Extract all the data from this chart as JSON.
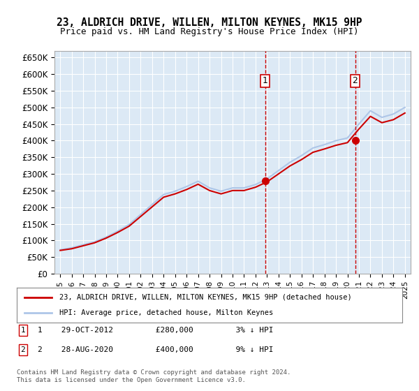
{
  "title": "23, ALDRICH DRIVE, WILLEN, MILTON KEYNES, MK15 9HP",
  "subtitle": "Price paid vs. HM Land Registry's House Price Index (HPI)",
  "xlabel": "",
  "ylabel": "",
  "ylim": [
    0,
    670000
  ],
  "yticks": [
    0,
    50000,
    100000,
    150000,
    200000,
    250000,
    300000,
    350000,
    400000,
    450000,
    500000,
    550000,
    600000,
    650000
  ],
  "ytick_labels": [
    "£0",
    "£50K",
    "£100K",
    "£150K",
    "£200K",
    "£250K",
    "£300K",
    "£350K",
    "£400K",
    "£450K",
    "£500K",
    "£550K",
    "£600K",
    "£650K"
  ],
  "xlim_start": 1994.5,
  "xlim_end": 2025.5,
  "sale1_year": 2012.83,
  "sale1_price": 280000,
  "sale1_label": "1",
  "sale2_year": 2020.67,
  "sale2_price": 400000,
  "sale2_label": "2",
  "hpi_color": "#aec6e8",
  "price_color": "#cc0000",
  "marker_box_color": "#cc0000",
  "background_color": "#dce9f5",
  "plot_bg_color": "#dce9f5",
  "grid_color": "#ffffff",
  "footnote": "Contains HM Land Registry data © Crown copyright and database right 2024.\nThis data is licensed under the Open Government Licence v3.0.",
  "legend_line1": "23, ALDRICH DRIVE, WILLEN, MILTON KEYNES, MK15 9HP (detached house)",
  "legend_line2": "HPI: Average price, detached house, Milton Keynes",
  "note1": "1    29-OCT-2012         £280,000         3% ↓ HPI",
  "note2": "2    28-AUG-2020         £400,000         9% ↓ HPI",
  "hpi_years": [
    1995,
    1996,
    1997,
    1998,
    1999,
    2000,
    2001,
    2002,
    2003,
    2004,
    2005,
    2006,
    2007,
    2008,
    2009,
    2010,
    2011,
    2012,
    2013,
    2014,
    2015,
    2016,
    2017,
    2018,
    2019,
    2020,
    2021,
    2022,
    2023,
    2024,
    2025
  ],
  "hpi_values": [
    72000,
    78000,
    87000,
    96000,
    110000,
    128000,
    148000,
    178000,
    208000,
    238000,
    248000,
    262000,
    278000,
    258000,
    248000,
    258000,
    258000,
    268000,
    285000,
    310000,
    335000,
    355000,
    378000,
    388000,
    400000,
    408000,
    450000,
    490000,
    470000,
    480000,
    500000
  ],
  "price_years": [
    1995,
    1996,
    1997,
    1998,
    1999,
    2000,
    2001,
    2002,
    2003,
    2004,
    2005,
    2006,
    2007,
    2008,
    2009,
    2010,
    2011,
    2012,
    2013,
    2014,
    2015,
    2016,
    2017,
    2018,
    2019,
    2020,
    2021,
    2022,
    2023,
    2024,
    2025
  ],
  "price_values": [
    70000,
    75000,
    84000,
    93000,
    107000,
    124000,
    143000,
    172000,
    201000,
    230000,
    240000,
    253000,
    269000,
    250000,
    240000,
    250000,
    250000,
    260000,
    276000,
    300000,
    324000,
    343000,
    365000,
    375000,
    386000,
    394000,
    435000,
    473000,
    454000,
    463000,
    483000
  ]
}
